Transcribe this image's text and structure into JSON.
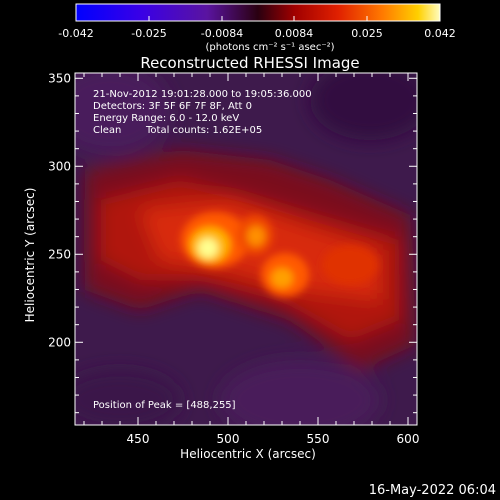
{
  "colorbar": {
    "ticks": [
      "-0.042",
      "-0.025",
      "-0.0084",
      "0.0084",
      "0.025",
      "0.042"
    ],
    "units": "(photons cm⁻² s⁻¹ asec⁻²)",
    "range": [
      -0.042,
      0.042
    ]
  },
  "title": "Reconstructed RHESSI Image",
  "info": {
    "time": "21-Nov-2012 19:01:28.000 to 19:05:36.000",
    "detectors": "Detectors: 3F 5F 6F 7F 8F, Att 0",
    "energy": "Energy Range: 6.0 - 12.0 keV",
    "clean_label": "Clean",
    "counts": "Total counts: 1.62E+05"
  },
  "peak_text": "Position of Peak = [488,255]",
  "axes": {
    "xlabel": "Heliocentric X (arcsec)",
    "ylabel": "Heliocentric Y (arcsec)",
    "xlim": [
      415,
      605
    ],
    "ylim": [
      153,
      353
    ],
    "xticks": [
      450,
      500,
      550,
      600
    ],
    "yticks": [
      200,
      250,
      300,
      350
    ]
  },
  "sources": [
    {
      "x": 488,
      "y": 255,
      "peak": 1.0
    },
    {
      "x": 512,
      "y": 262,
      "peak": 0.65
    },
    {
      "x": 530,
      "y": 245,
      "peak": 0.62
    }
  ],
  "footer_date": "16-May-2022 06:04"
}
